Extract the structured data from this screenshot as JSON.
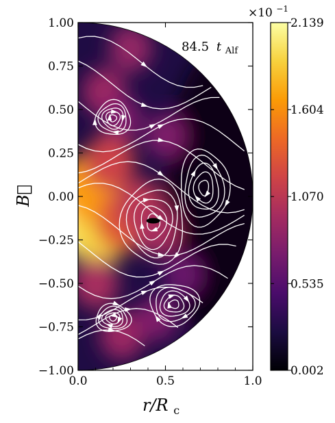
{
  "chart_data": {
    "type": "heatmap",
    "subtype": "half-disk field map with streamlines",
    "annotation": "84.5 t_Alf",
    "annotation_parts": {
      "value": "84.5",
      "symbol": "t",
      "subscript": "Alf"
    },
    "xlabel": "r/R_c",
    "xlabel_parts": {
      "main": "r/R",
      "subscript": "c"
    },
    "ylabel": "B⃗",
    "xlim": [
      0.0,
      1.0
    ],
    "ylim": [
      -1.0,
      1.0
    ],
    "x_ticks": [
      0.0,
      0.5,
      1.0
    ],
    "x_tick_labels": [
      "0.0",
      "0.5",
      "1.0"
    ],
    "y_ticks": [
      1.0,
      0.75,
      0.5,
      0.25,
      0.0,
      -0.25,
      -0.5,
      -0.75,
      -1.0
    ],
    "y_tick_labels": [
      "1.00",
      "0.75",
      "0.50",
      "0.25",
      "0.00",
      "−0.25",
      "−0.50",
      "−0.75",
      "−1.00"
    ],
    "colorbar": {
      "colormap": "inferno",
      "multiplier": "×10⁻¹",
      "multiplier_parts": {
        "base": "×10",
        "exponent": "−1"
      },
      "min": 0.002,
      "max": 2.139,
      "ticks": [
        2.139,
        1.604,
        1.07,
        0.535,
        0.002
      ],
      "tick_labels": [
        "2.139",
        "1.604",
        "1.070",
        "0.535",
        "0.002"
      ]
    },
    "colors": {
      "stops": [
        "#000004",
        "#1b0c41",
        "#4a0c6b",
        "#781c6d",
        "#a52c60",
        "#cf4446",
        "#ed6925",
        "#fb9b06",
        "#f7d13d",
        "#fcffa4"
      ]
    },
    "field_blobs": [
      {
        "r": 0.03,
        "z": -0.12,
        "level": 1.0
      },
      {
        "r": 0.12,
        "z": -0.18,
        "level": 0.9
      },
      {
        "r": 0.06,
        "z": 0.05,
        "level": 0.78
      },
      {
        "r": 0.25,
        "z": -0.15,
        "level": 0.62
      },
      {
        "r": 0.35,
        "z": -0.05,
        "level": 0.5
      },
      {
        "r": 0.45,
        "z": -0.2,
        "level": 0.45
      },
      {
        "r": 0.18,
        "z": 0.2,
        "level": 0.55
      },
      {
        "r": 0.15,
        "z": 0.6,
        "level": 0.42
      },
      {
        "r": 0.3,
        "z": 0.85,
        "level": 0.4
      },
      {
        "r": 0.25,
        "z": 0.45,
        "level": 0.35
      },
      {
        "r": 0.1,
        "z": -0.5,
        "level": 0.45
      },
      {
        "r": 0.25,
        "z": -0.8,
        "level": 0.42
      },
      {
        "r": 0.45,
        "z": -0.7,
        "level": 0.35
      },
      {
        "r": 0.5,
        "z": 0.35,
        "level": 0.35
      },
      {
        "r": 0.6,
        "z": -0.45,
        "level": 0.3
      }
    ],
    "vortices": [
      {
        "r": 0.43,
        "z": -0.15,
        "rx": 0.18,
        "rz": 0.24
      },
      {
        "r": 0.2,
        "z": 0.45,
        "rx": 0.1,
        "rz": 0.1
      },
      {
        "r": 0.2,
        "z": -0.7,
        "rx": 0.1,
        "rz": 0.08
      },
      {
        "r": 0.72,
        "z": 0.05,
        "rx": 0.14,
        "rz": 0.22
      },
      {
        "r": 0.55,
        "z": -0.62,
        "rx": 0.14,
        "rz": 0.12
      }
    ]
  }
}
